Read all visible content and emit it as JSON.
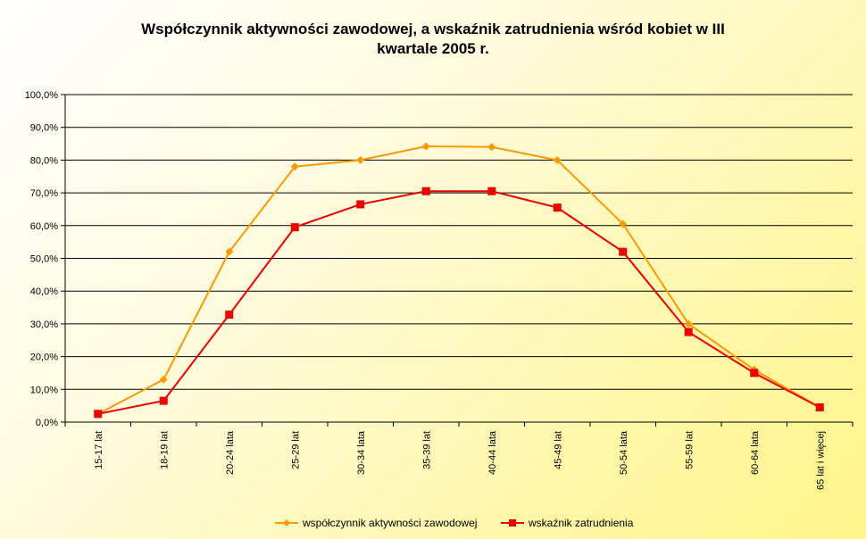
{
  "chart_data": {
    "type": "line",
    "title_line1": "Współczynnik aktywności zawodowej, a wskaźnik zatrudnienia wśród kobiet w III",
    "title_line2": "kwartale 2005 r.",
    "categories": [
      "15-17 lat",
      "18-19 lat",
      "20-24 lata",
      "25-29 lat",
      "30-34 lata",
      "35-39 lat",
      "40-44 lata",
      "45-49 lat",
      "50-54 lata",
      "55-59 lat",
      "60-64 lata",
      "65 lat i więcej"
    ],
    "y_ticks": [
      "0,0%",
      "10,0%",
      "20,0%",
      "30,0%",
      "40,0%",
      "50,0%",
      "60,0%",
      "70,0%",
      "80,0%",
      "90,0%",
      "100,0%"
    ],
    "ylim": [
      0,
      100
    ],
    "grid": true,
    "legend_position": "bottom",
    "series": [
      {
        "name": "współczynnik aktywności zawodowej",
        "color": "#ff9900",
        "marker": "diamond",
        "values": [
          2.5,
          13.0,
          52.0,
          78.0,
          80.0,
          84.2,
          84.0,
          80.0,
          60.5,
          30.0,
          16.0,
          4.5
        ]
      },
      {
        "name": "wskaźnik zatrudnienia",
        "color": "#ee0000",
        "marker": "square",
        "values": [
          2.5,
          6.5,
          32.8,
          59.5,
          66.5,
          70.5,
          70.5,
          65.5,
          52.0,
          27.5,
          15.0,
          4.5
        ]
      }
    ]
  }
}
